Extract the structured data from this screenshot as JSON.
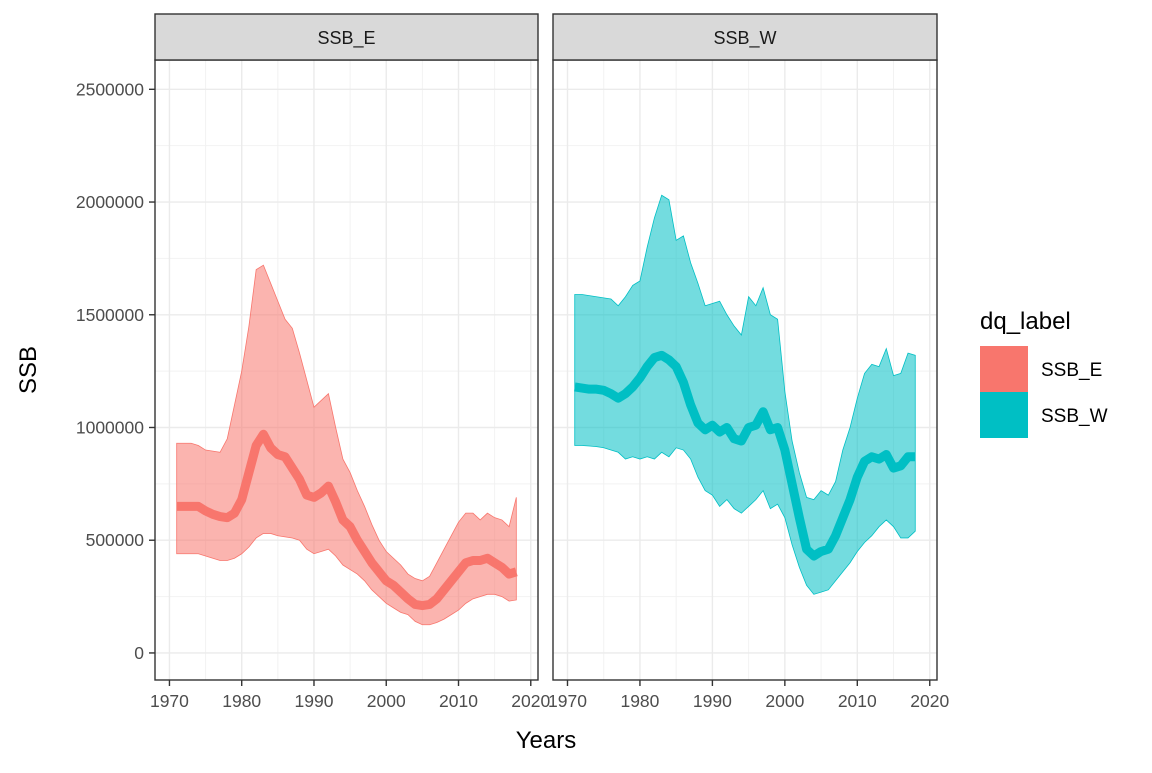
{
  "chart_data": {
    "type": "area",
    "xlabel": "Years",
    "ylabel": "SSB",
    "xlim": [
      1968,
      2021
    ],
    "ylim": [
      -120000,
      2630000
    ],
    "x_ticks": [
      1970,
      1980,
      1990,
      2000,
      2010,
      2020
    ],
    "y_ticks": [
      0,
      500000,
      1000000,
      1500000,
      2000000,
      2500000
    ],
    "x_tick_labels": [
      "1970",
      "1980",
      "1990",
      "2000",
      "2010",
      "2020"
    ],
    "y_tick_labels": [
      "0",
      "500000",
      "1000000",
      "1500000",
      "2000000",
      "2500000"
    ],
    "grid": true,
    "legend": {
      "title": "dq_label",
      "position": "right",
      "entries": [
        {
          "label": "SSB_E",
          "color": "#F8766D"
        },
        {
          "label": "SSB_W",
          "color": "#00BFC4"
        }
      ]
    },
    "panels": [
      {
        "strip": "SSB_E",
        "color": "#F8766D",
        "fill_opacity": 0.55,
        "x": [
          1971,
          1972,
          1973,
          1974,
          1975,
          1976,
          1977,
          1978,
          1979,
          1980,
          1981,
          1982,
          1983,
          1984,
          1985,
          1986,
          1987,
          1988,
          1989,
          1990,
          1991,
          1992,
          1993,
          1994,
          1995,
          1996,
          1997,
          1998,
          1999,
          2000,
          2001,
          2002,
          2003,
          2004,
          2005,
          2006,
          2007,
          2008,
          2009,
          2010,
          2011,
          2012,
          2013,
          2014,
          2015,
          2016,
          2017,
          2018
        ],
        "values": [
          650000,
          650000,
          650000,
          650000,
          630000,
          615000,
          605000,
          600000,
          620000,
          680000,
          800000,
          920000,
          970000,
          910000,
          880000,
          870000,
          820000,
          770000,
          700000,
          690000,
          710000,
          740000,
          670000,
          590000,
          560000,
          500000,
          450000,
          400000,
          360000,
          320000,
          300000,
          270000,
          240000,
          215000,
          210000,
          215000,
          240000,
          280000,
          320000,
          360000,
          400000,
          410000,
          410000,
          420000,
          400000,
          380000,
          350000,
          360000
        ],
        "lower": [
          440000,
          440000,
          440000,
          440000,
          430000,
          420000,
          410000,
          410000,
          420000,
          440000,
          470000,
          510000,
          530000,
          530000,
          520000,
          515000,
          510000,
          500000,
          460000,
          440000,
          450000,
          460000,
          430000,
          390000,
          370000,
          350000,
          320000,
          280000,
          250000,
          220000,
          200000,
          180000,
          170000,
          140000,
          125000,
          125000,
          135000,
          150000,
          170000,
          190000,
          220000,
          240000,
          250000,
          260000,
          260000,
          250000,
          230000,
          235000
        ],
        "upper": [
          930000,
          930000,
          930000,
          920000,
          900000,
          895000,
          890000,
          950000,
          1100000,
          1250000,
          1450000,
          1700000,
          1720000,
          1640000,
          1560000,
          1480000,
          1440000,
          1330000,
          1210000,
          1090000,
          1120000,
          1150000,
          1000000,
          860000,
          800000,
          720000,
          650000,
          570000,
          500000,
          450000,
          420000,
          390000,
          350000,
          330000,
          320000,
          340000,
          400000,
          460000,
          520000,
          580000,
          620000,
          620000,
          590000,
          620000,
          600000,
          590000,
          560000,
          690000
        ]
      },
      {
        "strip": "SSB_W",
        "color": "#00BFC4",
        "fill_opacity": 0.55,
        "x": [
          1971,
          1972,
          1973,
          1974,
          1975,
          1976,
          1977,
          1978,
          1979,
          1980,
          1981,
          1982,
          1983,
          1984,
          1985,
          1986,
          1987,
          1988,
          1989,
          1990,
          1991,
          1992,
          1993,
          1994,
          1995,
          1996,
          1997,
          1998,
          1999,
          2000,
          2001,
          2002,
          2003,
          2004,
          2005,
          2006,
          2007,
          2008,
          2009,
          2010,
          2011,
          2012,
          2013,
          2014,
          2015,
          2016,
          2017,
          2018
        ],
        "values": [
          1180000,
          1175000,
          1170000,
          1170000,
          1165000,
          1150000,
          1130000,
          1150000,
          1180000,
          1220000,
          1270000,
          1310000,
          1320000,
          1300000,
          1270000,
          1200000,
          1100000,
          1020000,
          990000,
          1010000,
          980000,
          1000000,
          950000,
          940000,
          1000000,
          1010000,
          1070000,
          990000,
          1000000,
          900000,
          750000,
          600000,
          460000,
          430000,
          450000,
          460000,
          520000,
          600000,
          680000,
          780000,
          850000,
          870000,
          860000,
          880000,
          820000,
          830000,
          870000,
          870000
        ],
        "lower": [
          920000,
          920000,
          918000,
          915000,
          910000,
          900000,
          890000,
          860000,
          870000,
          860000,
          870000,
          860000,
          890000,
          870000,
          910000,
          900000,
          860000,
          780000,
          720000,
          700000,
          650000,
          680000,
          640000,
          620000,
          650000,
          680000,
          720000,
          640000,
          660000,
          600000,
          480000,
          380000,
          300000,
          260000,
          270000,
          280000,
          320000,
          360000,
          400000,
          450000,
          490000,
          520000,
          560000,
          590000,
          560000,
          510000,
          510000,
          540000
        ],
        "upper": [
          1590000,
          1590000,
          1585000,
          1580000,
          1575000,
          1570000,
          1540000,
          1580000,
          1630000,
          1650000,
          1800000,
          1930000,
          2030000,
          2010000,
          1830000,
          1850000,
          1730000,
          1640000,
          1540000,
          1550000,
          1560000,
          1500000,
          1450000,
          1410000,
          1580000,
          1540000,
          1620000,
          1500000,
          1480000,
          1160000,
          940000,
          800000,
          690000,
          680000,
          720000,
          700000,
          760000,
          900000,
          1000000,
          1130000,
          1240000,
          1280000,
          1270000,
          1350000,
          1230000,
          1240000,
          1330000,
          1320000
        ]
      }
    ]
  }
}
